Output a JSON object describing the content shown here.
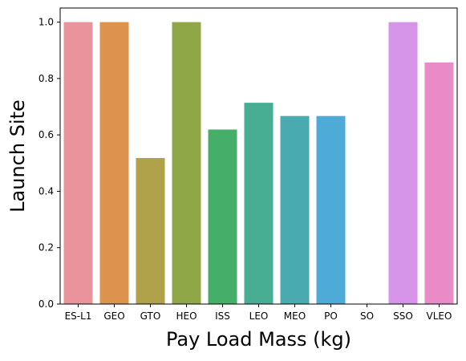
{
  "chart_data": {
    "type": "bar",
    "title": "",
    "xlabel": "Pay Load Mass (kg)",
    "ylabel": "Launch Site",
    "categories": [
      "ES-L1",
      "GEO",
      "GTO",
      "HEO",
      "ISS",
      "LEO",
      "MEO",
      "PO",
      "SO",
      "SSO",
      "VLEO"
    ],
    "values": [
      1.0,
      1.0,
      0.518,
      1.0,
      0.619,
      0.714,
      0.667,
      0.667,
      0.0,
      1.0,
      0.857
    ],
    "colors": [
      "#e9949c",
      "#dd924e",
      "#b0a24a",
      "#8fa747",
      "#45ae68",
      "#47ae94",
      "#49aaaf",
      "#4eaad6",
      "#b2a2ea",
      "#d694e9",
      "#e88bc7"
    ],
    "ylim": [
      0,
      1.05
    ],
    "yticks": [
      "0.0",
      "0.2",
      "0.4",
      "0.6",
      "0.8",
      "1.0"
    ],
    "grid": false,
    "legend": "none"
  }
}
